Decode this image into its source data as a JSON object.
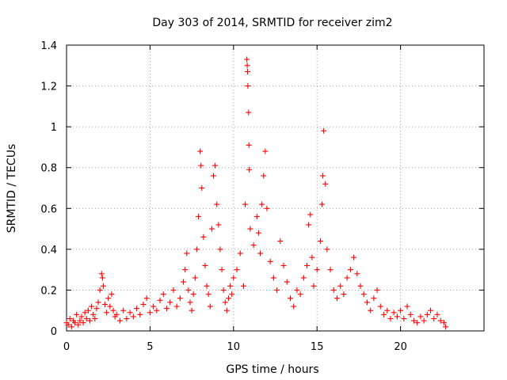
{
  "chart_data": {
    "type": "scatter",
    "title": "Day 303 of 2014, SRMTID for receiver zim2",
    "xlabel": "GPS time / hours",
    "ylabel": "SRMTID / TECUs",
    "xlim": [
      0,
      25
    ],
    "ylim": [
      0,
      1.4
    ],
    "x_ticks": [
      0,
      5,
      10,
      15,
      20
    ],
    "x_tick_labels": [
      "0",
      "5",
      "10",
      "15",
      "20"
    ],
    "y_ticks": [
      0,
      0.2,
      0.4,
      0.6,
      0.8,
      1.0,
      1.2,
      1.4
    ],
    "y_tick_labels": [
      "0",
      "0.2",
      "0.4",
      "0.6",
      "0.8",
      "1",
      "1.2",
      "1.4"
    ],
    "grid": true,
    "marker": "+",
    "color": "#ff0000",
    "series": [
      {
        "name": "SRMTID",
        "points": [
          [
            0.0,
            0.04
          ],
          [
            0.1,
            0.03
          ],
          [
            0.2,
            0.06
          ],
          [
            0.3,
            0.02
          ],
          [
            0.4,
            0.05
          ],
          [
            0.5,
            0.04
          ],
          [
            0.6,
            0.08
          ],
          [
            0.7,
            0.03
          ],
          [
            0.8,
            0.05
          ],
          [
            0.9,
            0.07
          ],
          [
            1.0,
            0.04
          ],
          [
            1.1,
            0.09
          ],
          [
            1.2,
            0.06
          ],
          [
            1.3,
            0.1
          ],
          [
            1.4,
            0.05
          ],
          [
            1.5,
            0.12
          ],
          [
            1.6,
            0.08
          ],
          [
            1.7,
            0.06
          ],
          [
            1.8,
            0.11
          ],
          [
            1.9,
            0.14
          ],
          [
            2.0,
            0.2
          ],
          [
            2.1,
            0.28
          ],
          [
            2.15,
            0.26
          ],
          [
            2.2,
            0.22
          ],
          [
            2.3,
            0.13
          ],
          [
            2.4,
            0.09
          ],
          [
            2.5,
            0.16
          ],
          [
            2.6,
            0.12
          ],
          [
            2.7,
            0.18
          ],
          [
            2.8,
            0.1
          ],
          [
            2.9,
            0.07
          ],
          [
            3.0,
            0.08
          ],
          [
            3.2,
            0.05
          ],
          [
            3.4,
            0.1
          ],
          [
            3.6,
            0.06
          ],
          [
            3.8,
            0.09
          ],
          [
            4.0,
            0.07
          ],
          [
            4.2,
            0.11
          ],
          [
            4.4,
            0.08
          ],
          [
            4.6,
            0.13
          ],
          [
            4.8,
            0.16
          ],
          [
            5.0,
            0.09
          ],
          [
            5.2,
            0.12
          ],
          [
            5.4,
            0.1
          ],
          [
            5.6,
            0.15
          ],
          [
            5.8,
            0.18
          ],
          [
            6.0,
            0.11
          ],
          [
            6.2,
            0.14
          ],
          [
            6.4,
            0.2
          ],
          [
            6.6,
            0.12
          ],
          [
            6.8,
            0.16
          ],
          [
            7.0,
            0.24
          ],
          [
            7.1,
            0.3
          ],
          [
            7.2,
            0.38
          ],
          [
            7.3,
            0.2
          ],
          [
            7.4,
            0.14
          ],
          [
            7.5,
            0.1
          ],
          [
            7.6,
            0.18
          ],
          [
            7.7,
            0.26
          ],
          [
            7.8,
            0.4
          ],
          [
            7.9,
            0.56
          ],
          [
            8.0,
            0.88
          ],
          [
            8.05,
            0.81
          ],
          [
            8.1,
            0.7
          ],
          [
            8.2,
            0.46
          ],
          [
            8.3,
            0.32
          ],
          [
            8.4,
            0.22
          ],
          [
            8.5,
            0.18
          ],
          [
            8.6,
            0.12
          ],
          [
            8.7,
            0.5
          ],
          [
            8.8,
            0.76
          ],
          [
            8.9,
            0.81
          ],
          [
            9.0,
            0.62
          ],
          [
            9.1,
            0.52
          ],
          [
            9.2,
            0.4
          ],
          [
            9.3,
            0.3
          ],
          [
            9.4,
            0.2
          ],
          [
            9.5,
            0.14
          ],
          [
            9.6,
            0.1
          ],
          [
            9.7,
            0.16
          ],
          [
            9.8,
            0.22
          ],
          [
            9.9,
            0.18
          ],
          [
            10.0,
            0.26
          ],
          [
            10.2,
            0.3
          ],
          [
            10.4,
            0.38
          ],
          [
            10.6,
            0.22
          ],
          [
            10.7,
            0.62
          ],
          [
            10.8,
            1.33
          ],
          [
            10.82,
            1.3
          ],
          [
            10.84,
            1.27
          ],
          [
            10.86,
            1.2
          ],
          [
            10.9,
            1.07
          ],
          [
            10.92,
            0.91
          ],
          [
            10.94,
            0.79
          ],
          [
            11.0,
            0.5
          ],
          [
            11.2,
            0.42
          ],
          [
            11.4,
            0.56
          ],
          [
            11.5,
            0.48
          ],
          [
            11.6,
            0.38
          ],
          [
            11.7,
            0.62
          ],
          [
            11.8,
            0.76
          ],
          [
            11.9,
            0.88
          ],
          [
            12.0,
            0.6
          ],
          [
            12.2,
            0.34
          ],
          [
            12.4,
            0.26
          ],
          [
            12.6,
            0.2
          ],
          [
            12.8,
            0.44
          ],
          [
            13.0,
            0.32
          ],
          [
            13.2,
            0.24
          ],
          [
            13.4,
            0.16
          ],
          [
            13.6,
            0.12
          ],
          [
            13.8,
            0.2
          ],
          [
            14.0,
            0.18
          ],
          [
            14.2,
            0.26
          ],
          [
            14.4,
            0.32
          ],
          [
            14.5,
            0.52
          ],
          [
            14.6,
            0.57
          ],
          [
            14.7,
            0.36
          ],
          [
            14.8,
            0.22
          ],
          [
            15.0,
            0.3
          ],
          [
            15.2,
            0.44
          ],
          [
            15.3,
            0.62
          ],
          [
            15.35,
            0.76
          ],
          [
            15.4,
            0.98
          ],
          [
            15.5,
            0.72
          ],
          [
            15.6,
            0.4
          ],
          [
            15.8,
            0.3
          ],
          [
            16.0,
            0.2
          ],
          [
            16.2,
            0.16
          ],
          [
            16.4,
            0.22
          ],
          [
            16.6,
            0.18
          ],
          [
            16.8,
            0.26
          ],
          [
            17.0,
            0.3
          ],
          [
            17.2,
            0.36
          ],
          [
            17.4,
            0.28
          ],
          [
            17.6,
            0.22
          ],
          [
            17.8,
            0.18
          ],
          [
            18.0,
            0.14
          ],
          [
            18.2,
            0.1
          ],
          [
            18.4,
            0.16
          ],
          [
            18.6,
            0.2
          ],
          [
            18.8,
            0.12
          ],
          [
            19.0,
            0.08
          ],
          [
            19.2,
            0.1
          ],
          [
            19.4,
            0.06
          ],
          [
            19.6,
            0.09
          ],
          [
            19.8,
            0.07
          ],
          [
            20.0,
            0.1
          ],
          [
            20.2,
            0.06
          ],
          [
            20.4,
            0.12
          ],
          [
            20.6,
            0.08
          ],
          [
            20.8,
            0.05
          ],
          [
            21.0,
            0.04
          ],
          [
            21.2,
            0.07
          ],
          [
            21.4,
            0.05
          ],
          [
            21.6,
            0.08
          ],
          [
            21.8,
            0.1
          ],
          [
            22.0,
            0.06
          ],
          [
            22.2,
            0.08
          ],
          [
            22.4,
            0.05
          ],
          [
            22.6,
            0.04
          ],
          [
            22.7,
            0.02
          ]
        ]
      }
    ]
  }
}
